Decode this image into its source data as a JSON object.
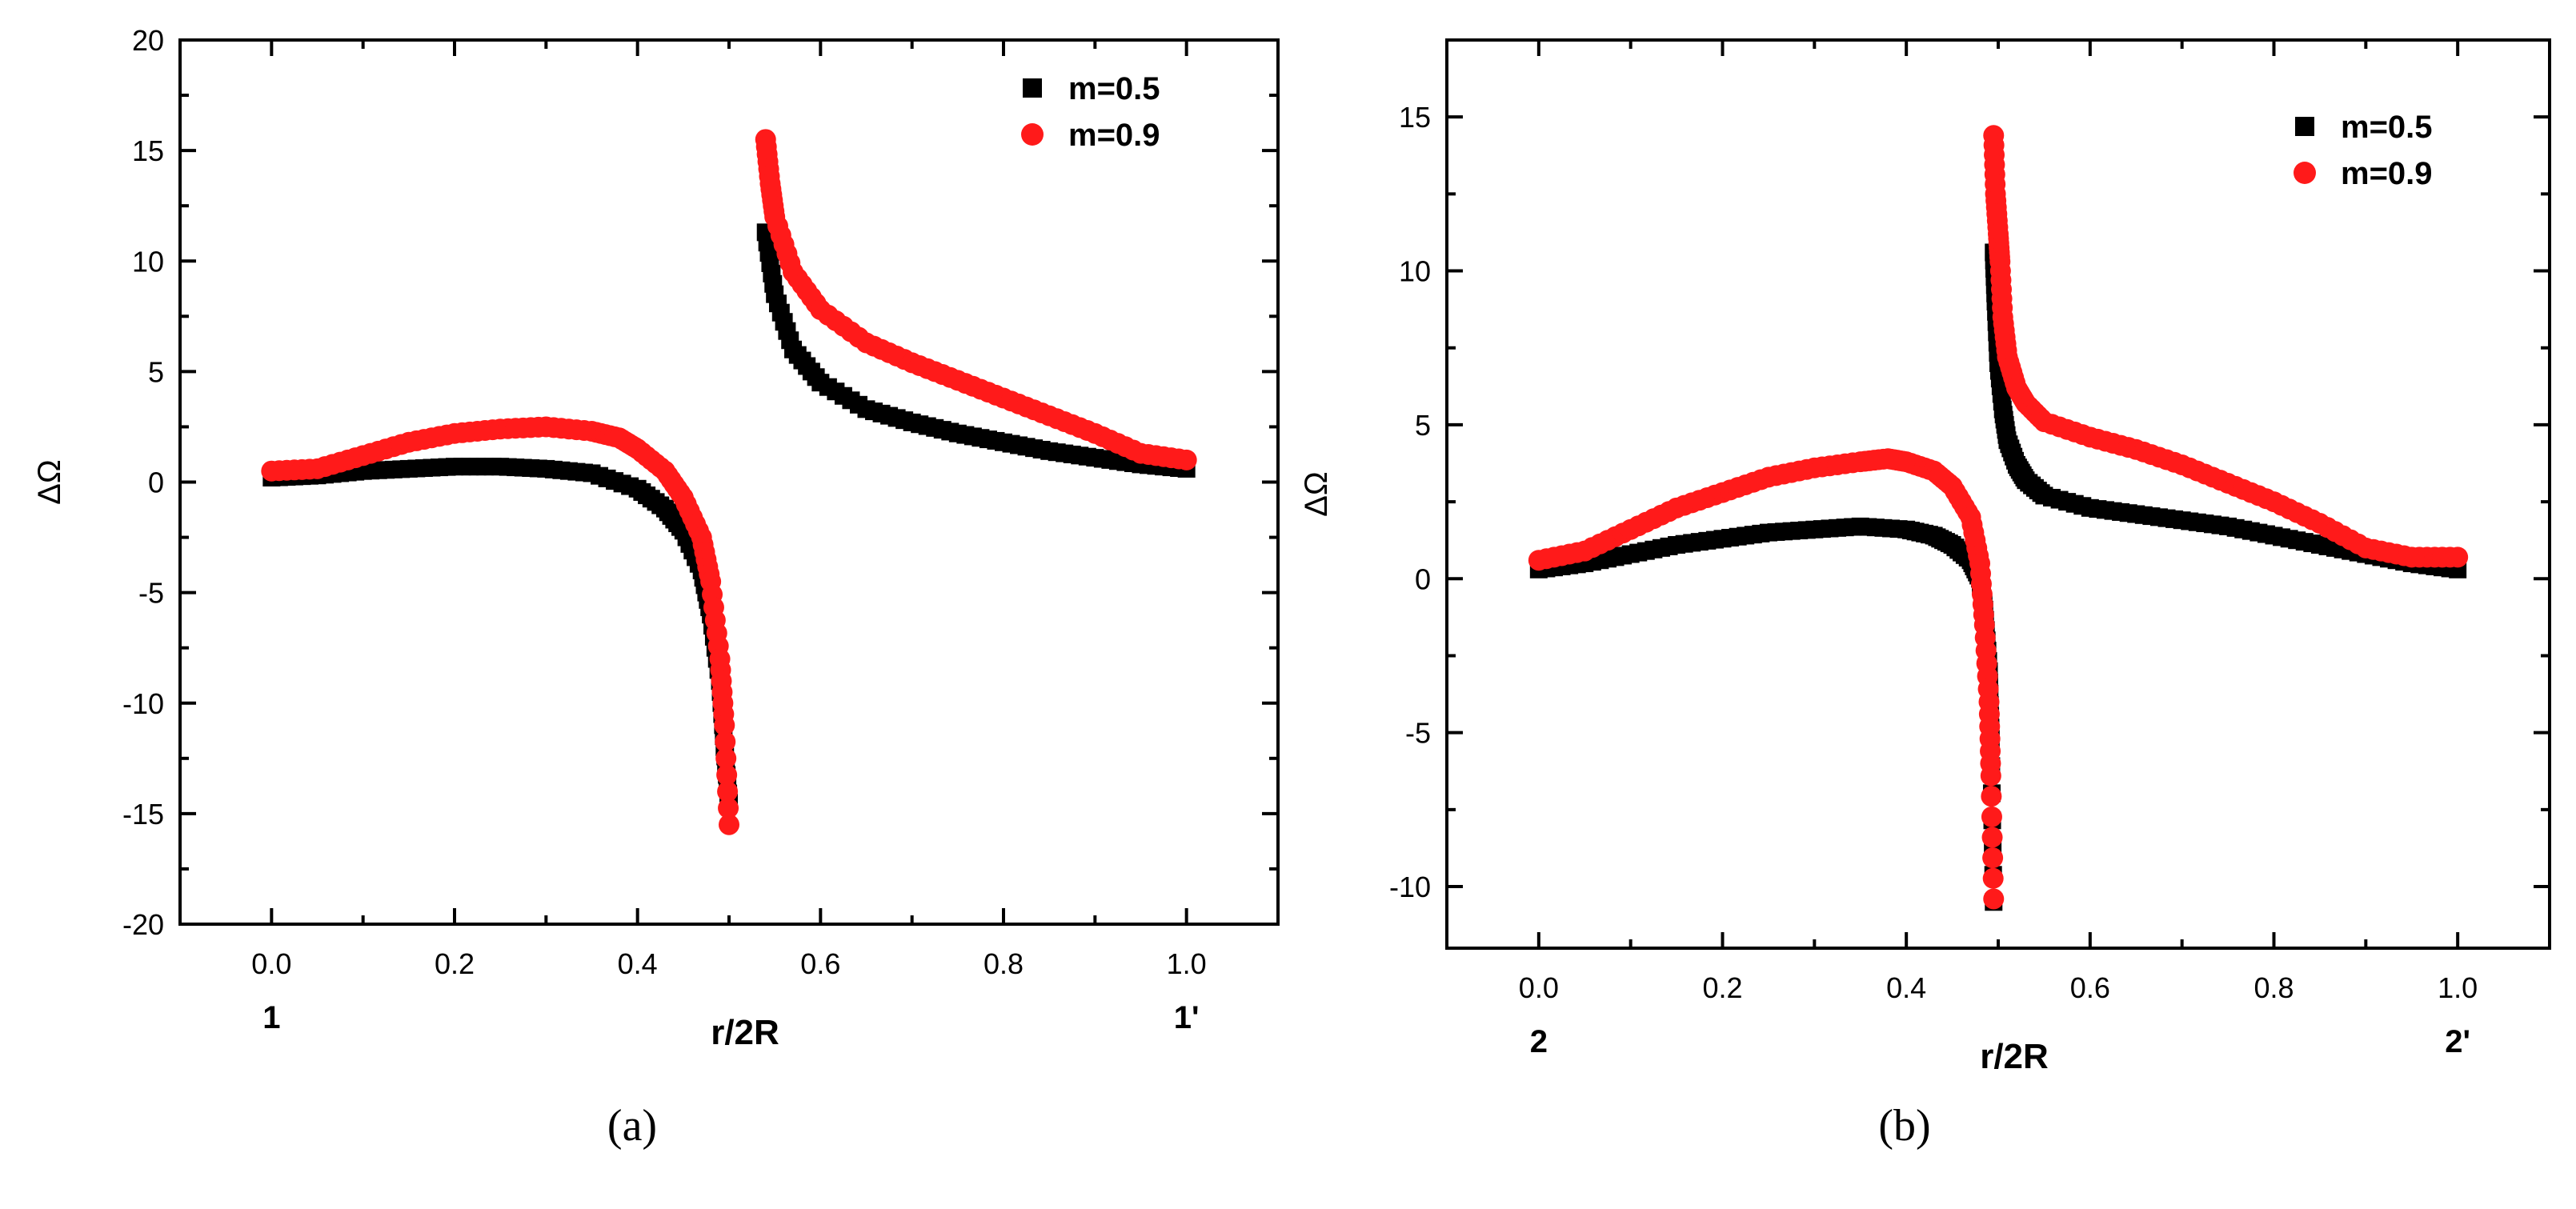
{
  "chart_data": [
    {
      "type": "scatter",
      "caption": "(a)",
      "xlabel": "r/2R",
      "ylabel": "ΔΩ",
      "xlim": [
        -0.1,
        1.1
      ],
      "ylim": [
        -20,
        20
      ],
      "xticks": [
        0.0,
        0.2,
        0.4,
        0.6,
        0.8,
        1.0
      ],
      "xtick_labels": [
        "0.0",
        "0.2",
        "0.4",
        "0.6",
        "0.8",
        "1.0"
      ],
      "yticks": [
        -20,
        -15,
        -10,
        -5,
        0,
        5,
        10,
        15,
        20
      ],
      "ytick_labels": [
        "-20",
        "-15",
        "-10",
        "-5",
        "0",
        "5",
        "10",
        "15",
        "20"
      ],
      "endpoint_labels": [
        {
          "x": 0.0,
          "text": "1"
        },
        {
          "x": 1.0,
          "text": "1'"
        }
      ],
      "legend": "top-right",
      "grid": false,
      "series": [
        {
          "name": "m=0.5",
          "marker": "square",
          "color": "#000000",
          "left_branch": {
            "x": [
              0.0,
              0.05,
              0.1,
              0.15,
              0.2,
              0.25,
              0.3,
              0.35,
              0.4,
              0.43,
              0.45,
              0.47,
              0.48,
              0.49,
              0.495,
              0.5
            ],
            "y": [
              0.2,
              0.3,
              0.5,
              0.6,
              0.7,
              0.7,
              0.6,
              0.4,
              -0.3,
              -1.2,
              -2.2,
              -4.0,
              -6.0,
              -9.0,
              -12.0,
              -14.5
            ]
          },
          "right_branch": {
            "x": [
              0.54,
              0.55,
              0.57,
              0.6,
              0.65,
              0.7,
              0.75,
              0.8,
              0.85,
              0.9,
              0.95,
              1.0
            ],
            "y": [
              11.3,
              8.5,
              6.0,
              4.5,
              3.3,
              2.7,
              2.2,
              1.8,
              1.4,
              1.1,
              0.8,
              0.6
            ]
          }
        },
        {
          "name": "m=0.9",
          "marker": "circle",
          "color": "#ff1a1a",
          "left_branch": {
            "x": [
              0.0,
              0.05,
              0.1,
              0.15,
              0.2,
              0.25,
              0.3,
              0.35,
              0.38,
              0.4,
              0.43,
              0.45,
              0.47,
              0.48,
              0.49,
              0.495,
              0.5
            ],
            "y": [
              0.5,
              0.6,
              1.2,
              1.8,
              2.2,
              2.4,
              2.5,
              2.3,
              2.0,
              1.5,
              0.5,
              -0.7,
              -2.5,
              -4.5,
              -8.0,
              -11.0,
              -15.5
            ]
          },
          "right_branch": {
            "x": [
              0.54,
              0.545,
              0.55,
              0.57,
              0.6,
              0.65,
              0.7,
              0.75,
              0.8,
              0.85,
              0.9,
              0.95,
              1.0
            ],
            "y": [
              15.5,
              13.5,
              12.0,
              9.5,
              7.8,
              6.3,
              5.4,
              4.6,
              3.8,
              3.0,
              2.2,
              1.3,
              1.0
            ]
          }
        }
      ]
    },
    {
      "type": "scatter",
      "caption": "(b)",
      "xlabel": "r/2R",
      "ylabel": "ΔΩ",
      "xlim": [
        -0.1,
        1.1
      ],
      "ylim": [
        -12,
        17.5
      ],
      "xticks": [
        0.0,
        0.2,
        0.4,
        0.6,
        0.8,
        1.0
      ],
      "xtick_labels": [
        "0.0",
        "0.2",
        "0.4",
        "0.6",
        "0.8",
        "1.0"
      ],
      "yticks": [
        -10,
        -5,
        0,
        5,
        10,
        15
      ],
      "ytick_labels": [
        "-10",
        "-5",
        "0",
        "5",
        "10",
        "15"
      ],
      "endpoint_labels": [
        {
          "x": 0.0,
          "text": "2"
        },
        {
          "x": 1.0,
          "text": "2'"
        }
      ],
      "legend": "top-right",
      "grid": false,
      "series": [
        {
          "name": "m=0.5",
          "marker": "square",
          "color": "#000000",
          "left_branch": {
            "x": [
              0.0,
              0.05,
              0.1,
              0.15,
              0.2,
              0.25,
              0.3,
              0.35,
              0.4,
              0.43,
              0.45,
              0.47,
              0.48,
              0.485,
              0.49,
              0.492,
              0.495
            ],
            "y": [
              0.3,
              0.5,
              0.8,
              1.1,
              1.3,
              1.5,
              1.6,
              1.7,
              1.6,
              1.4,
              1.1,
              0.6,
              0.0,
              -1.0,
              -3.0,
              -5.2,
              -10.5
            ]
          },
          "right_branch": {
            "x": [
              0.495,
              0.497,
              0.5,
              0.505,
              0.51,
              0.52,
              0.53,
              0.55,
              0.6,
              0.65,
              0.7,
              0.75,
              0.8,
              0.85,
              0.9,
              0.95,
              1.0
            ],
            "y": [
              10.6,
              9.0,
              7.0,
              5.5,
              4.5,
              3.7,
              3.2,
              2.7,
              2.3,
              2.1,
              1.9,
              1.7,
              1.4,
              1.1,
              0.8,
              0.5,
              0.3
            ]
          }
        },
        {
          "name": "m=0.9",
          "marker": "circle",
          "color": "#ff1a1a",
          "left_branch": {
            "x": [
              0.0,
              0.05,
              0.1,
              0.15,
              0.2,
              0.25,
              0.3,
              0.35,
              0.38,
              0.4,
              0.43,
              0.45,
              0.47,
              0.48,
              0.485,
              0.49,
              0.492,
              0.495
            ],
            "y": [
              0.6,
              0.9,
              1.6,
              2.3,
              2.8,
              3.3,
              3.6,
              3.8,
              3.9,
              3.8,
              3.5,
              3.0,
              2.0,
              0.5,
              -1.5,
              -4.0,
              -6.4,
              -10.4
            ]
          },
          "right_branch": {
            "x": [
              0.495,
              0.497,
              0.5,
              0.502,
              0.505,
              0.51,
              0.52,
              0.53,
              0.55,
              0.6,
              0.65,
              0.7,
              0.75,
              0.8,
              0.85,
              0.9,
              0.95,
              1.0
            ],
            "y": [
              14.4,
              12.5,
              11.2,
              10.3,
              8.5,
              7.2,
              6.2,
              5.7,
              5.1,
              4.6,
              4.2,
              3.7,
              3.1,
              2.5,
              1.8,
              1.0,
              0.7,
              0.7
            ]
          }
        }
      ]
    }
  ]
}
